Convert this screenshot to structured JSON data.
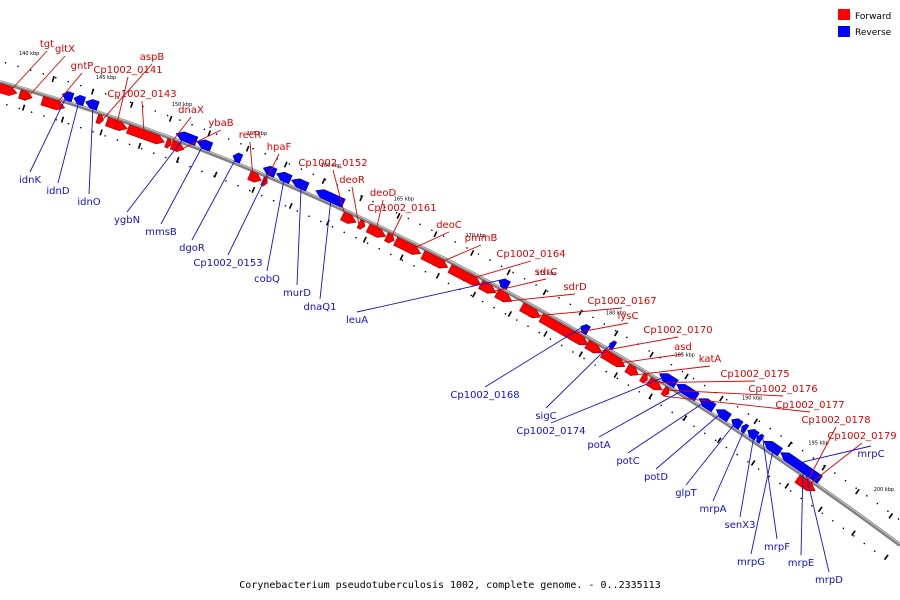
{
  "caption": "Corynebacterium pseudotuberculosis 1002, complete genome. - 0..2335113",
  "legend": {
    "forward_label": "Forward",
    "reverse_label": "Reverse",
    "forward_color": "#ff0000",
    "reverse_color": "#0000ff"
  },
  "colors": {
    "axis": "#808080",
    "ticks": "#000000"
  },
  "kbp_ticks": [
    "140 kbp",
    "145 kbp",
    "150 kbp",
    "155 kbp",
    "160 kbp",
    "165 kbp",
    "170 kbp",
    "175 kbp",
    "180 kbp",
    "185 kbp",
    "190 kbp",
    "195 kbp",
    "200 kbp"
  ],
  "forward_genes": [
    "tgt",
    "gltX",
    "gntP",
    "aspB",
    "Cp1002_0141",
    "Cp1002_0143",
    "dnaX",
    "ybaB",
    "recR",
    "hpaF",
    "Cp1002_0152",
    "deoR",
    "deoD",
    "Cp1002_0161",
    "deoC",
    "pmmB",
    "Cp1002_0164",
    "sdrC",
    "sdrD",
    "Cp1002_0167",
    "lysC",
    "Cp1002_0170",
    "asd",
    "katA",
    "Cp1002_0175",
    "Cp1002_0176",
    "Cp1002_0177",
    "Cp1002_0178",
    "Cp1002_0179"
  ],
  "reverse_genes": [
    "idnK",
    "idnD",
    "idnO",
    "ygbN",
    "mmsB",
    "dgoR",
    "Cp1002_0153",
    "cobQ",
    "murD",
    "dnaQ1",
    "leuA",
    "Cp1002_0168",
    "sigC",
    "Cp1002_0174",
    "potA",
    "potC",
    "potD",
    "glpT",
    "mrpA",
    "senX3",
    "mrpF",
    "mrpG",
    "mrpE",
    "mrpD",
    "mrpC"
  ]
}
